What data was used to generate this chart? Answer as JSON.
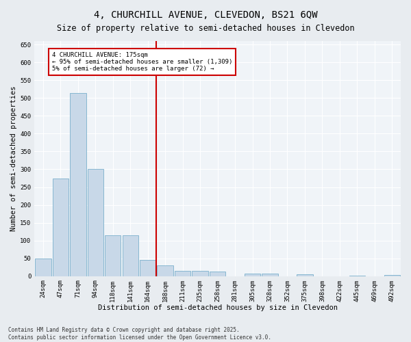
{
  "title_line1": "4, CHURCHILL AVENUE, CLEVEDON, BS21 6QW",
  "title_line2": "Size of property relative to semi-detached houses in Clevedon",
  "xlabel": "Distribution of semi-detached houses by size in Clevedon",
  "ylabel": "Number of semi-detached properties",
  "categories": [
    "24sqm",
    "47sqm",
    "71sqm",
    "94sqm",
    "118sqm",
    "141sqm",
    "164sqm",
    "188sqm",
    "211sqm",
    "235sqm",
    "258sqm",
    "281sqm",
    "305sqm",
    "328sqm",
    "352sqm",
    "375sqm",
    "398sqm",
    "422sqm",
    "445sqm",
    "469sqm",
    "492sqm"
  ],
  "values": [
    50,
    275,
    515,
    300,
    115,
    115,
    45,
    30,
    15,
    15,
    12,
    0,
    8,
    8,
    0,
    6,
    0,
    0,
    2,
    0,
    4
  ],
  "bar_color": "#c8d8e8",
  "bar_edge_color": "#7ab0cc",
  "vline_x_index": 7,
  "vline_color": "#cc0000",
  "annotation_text": "4 CHURCHILL AVENUE: 175sqm\n← 95% of semi-detached houses are smaller (1,309)\n5% of semi-detached houses are larger (72) →",
  "annotation_box_color": "#cc0000",
  "ylim": [
    0,
    660
  ],
  "yticks": [
    0,
    50,
    100,
    150,
    200,
    250,
    300,
    350,
    400,
    450,
    500,
    550,
    600,
    650
  ],
  "bg_color": "#e8ecf0",
  "plot_bg_color": "#f0f4f8",
  "footer_line1": "Contains HM Land Registry data © Crown copyright and database right 2025.",
  "footer_line2": "Contains public sector information licensed under the Open Government Licence v3.0.",
  "title_fontsize": 10,
  "subtitle_fontsize": 8.5,
  "label_fontsize": 7.5,
  "tick_fontsize": 6.5,
  "annotation_fontsize": 6.5,
  "footer_fontsize": 5.5
}
